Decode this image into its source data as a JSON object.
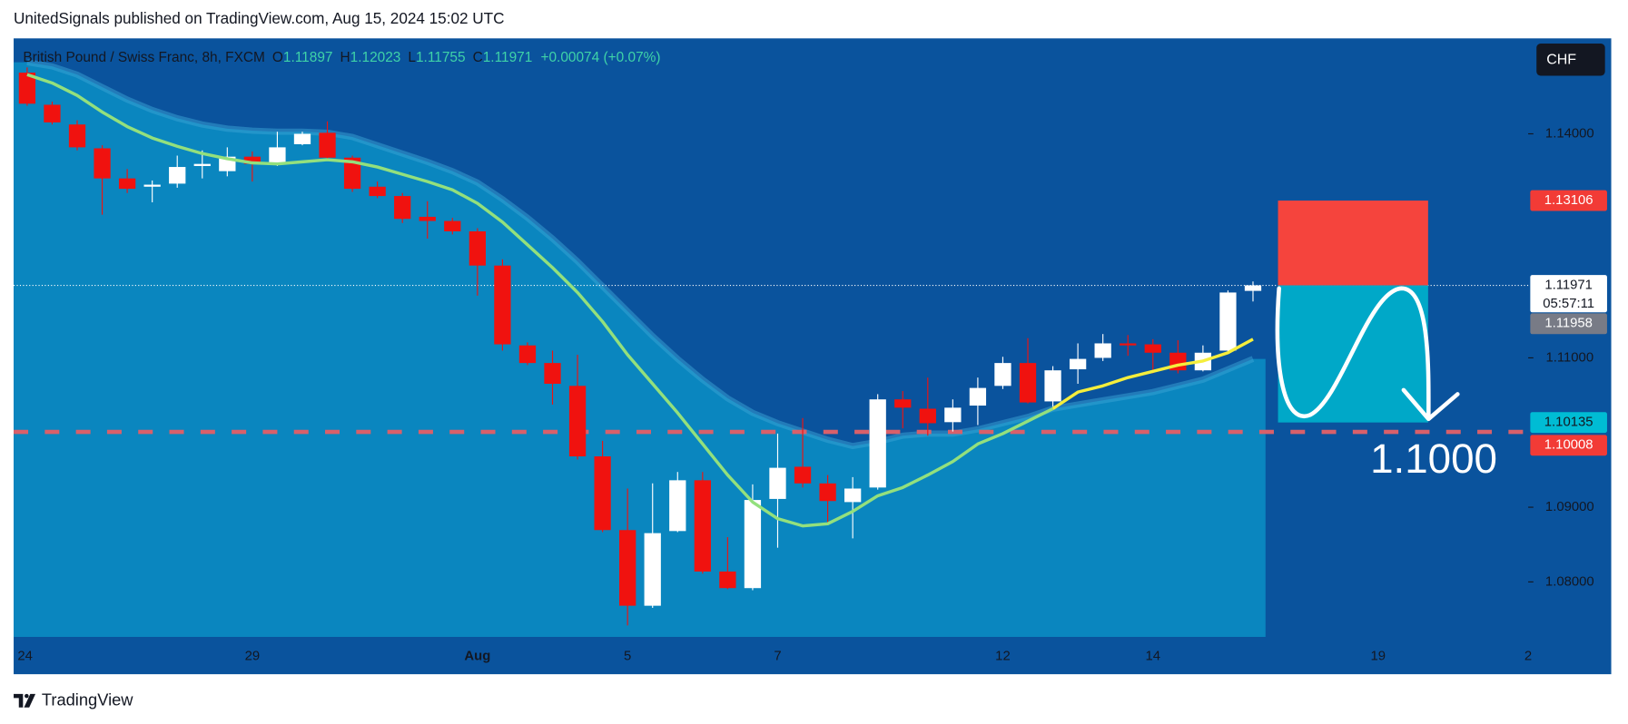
{
  "header": "UnitedSignals published on TradingView.com, Aug 15, 2024 15:02 UTC",
  "footer": "TradingView",
  "currency_button": "CHF",
  "chart_data": {
    "type": "candlestick",
    "symbol": "British Pound / Swiss Franc, 8h, FXCM",
    "legend_letters": [
      "O",
      "H",
      "L",
      "C"
    ],
    "change_label": "+0.00074 (+0.07%)",
    "categories": [
      "24",
      null,
      null,
      null,
      null,
      null,
      null,
      null,
      null,
      "29",
      null,
      null,
      null,
      null,
      null,
      null,
      null,
      null,
      "Aug",
      null,
      null,
      null,
      null,
      null,
      "5",
      null,
      null,
      null,
      null,
      null,
      "7",
      null,
      null,
      null,
      null,
      null,
      null,
      null,
      null,
      "12",
      null,
      null,
      null,
      null,
      null,
      "14",
      null,
      null,
      null,
      null,
      null,
      null,
      null,
      null,
      "19",
      null,
      null,
      null,
      null,
      null,
      "2"
    ],
    "open": [
      1.14819,
      1.14389,
      1.14125,
      1.13806,
      1.13403,
      1.13292,
      1.13333,
      1.13569,
      1.135,
      1.13694,
      1.13611,
      1.13861,
      1.14014,
      1.13681,
      1.13292,
      1.13167,
      1.12889,
      1.12833,
      1.12694,
      1.12236,
      1.11167,
      1.10931,
      1.10625,
      1.09681,
      1.08694,
      1.07681,
      1.08681,
      1.09361,
      1.08139,
      1.07917,
      1.09111,
      1.09542,
      1.09319,
      1.09069,
      1.09264,
      1.10444,
      1.10319,
      1.10139,
      1.10361,
      1.10625,
      1.10931,
      1.10417,
      1.10847,
      1.11,
      1.11194,
      1.11181,
      1.11069,
      1.10833,
      1.11097,
      1.11897,
      null,
      null,
      null,
      null,
      null,
      null,
      null,
      null,
      null,
      null,
      null
    ],
    "high": [
      1.14889,
      1.14431,
      1.14181,
      1.13847,
      1.13528,
      1.13375,
      1.13708,
      1.13778,
      1.13819,
      1.13764,
      1.14028,
      1.14028,
      1.14167,
      1.13708,
      1.13361,
      1.13208,
      1.13097,
      1.12875,
      1.12736,
      1.12319,
      1.11208,
      1.11097,
      1.11042,
      1.09889,
      1.0925,
      1.09319,
      1.09472,
      1.09472,
      1.086,
      1.09306,
      1.09986,
      1.10194,
      1.09431,
      1.09403,
      1.10514,
      1.10556,
      1.10736,
      1.10444,
      1.10736,
      1.11014,
      1.11264,
      1.10889,
      1.11194,
      1.11319,
      1.11306,
      1.1125,
      1.11236,
      1.11167,
      1.11903,
      1.12023,
      null,
      null,
      null,
      null,
      null,
      null,
      null,
      null,
      null,
      null,
      null
    ],
    "low": [
      1.14375,
      1.14125,
      1.13778,
      1.12917,
      1.13208,
      1.13083,
      1.13278,
      1.13403,
      1.13431,
      1.13361,
      1.1357,
      1.13847,
      1.13639,
      1.13222,
      1.13139,
      1.12806,
      1.12597,
      1.12653,
      1.11833,
      1.11097,
      1.10903,
      1.10375,
      1.09639,
      1.08667,
      1.07417,
      1.07653,
      1.08667,
      1.08111,
      1.07903,
      1.07889,
      1.08458,
      1.09264,
      1.08778,
      1.08583,
      1.09236,
      1.10056,
      1.09958,
      1.10014,
      1.101,
      1.10583,
      1.10389,
      1.10347,
      1.10653,
      1.10958,
      1.11028,
      1.10792,
      1.10792,
      1.10819,
      1.11069,
      1.11755,
      null,
      null,
      null,
      null,
      null,
      null,
      null,
      null,
      null,
      null,
      null
    ],
    "close": [
      1.14403,
      1.14153,
      1.13819,
      1.13403,
      1.13264,
      1.13319,
      1.13556,
      1.13597,
      1.13694,
      1.13597,
      1.13819,
      1.14,
      1.13681,
      1.13264,
      1.13167,
      1.12861,
      1.12833,
      1.12694,
      1.12236,
      1.11181,
      1.10931,
      1.10653,
      1.09681,
      1.08694,
      1.07681,
      1.08653,
      1.09361,
      1.08139,
      1.07917,
      1.09097,
      1.09528,
      1.09319,
      1.09083,
      1.0925,
      1.10444,
      1.10333,
      1.10125,
      1.10333,
      1.10597,
      1.10931,
      1.10403,
      1.10833,
      1.10986,
      1.11194,
      1.11167,
      1.11069,
      1.10833,
      1.11069,
      1.11875,
      1.11971,
      null,
      null,
      null,
      null,
      null,
      null,
      null,
      null,
      null,
      null,
      null
    ],
    "up_color": "#ffffff",
    "down_color": "#f0120f",
    "series": [
      {
        "color": "#93e07d",
        "values": [
          1.14792,
          1.14681,
          1.14514,
          1.14292,
          1.14097,
          1.13944,
          1.13833,
          1.13736,
          1.13667,
          1.13611,
          1.13597,
          1.13625,
          1.13653,
          1.13625,
          1.13556,
          1.13458,
          1.13361,
          1.1325,
          1.13069,
          1.12819,
          1.12514,
          1.12208,
          1.11875,
          1.11486,
          1.11042,
          1.10653,
          1.10264,
          1.09847,
          1.09431,
          1.09069,
          1.08847,
          1.0875,
          1.08778,
          1.08944,
          1.09153,
          1.09264,
          1.09431,
          1.09611,
          1.09847,
          1.09986,
          1.10153,
          1.10319,
          null,
          null,
          null,
          null,
          null,
          null,
          null,
          null,
          null,
          null,
          null,
          null,
          null,
          null,
          null,
          null,
          null,
          null,
          null
        ]
      },
      {
        "color": "#f5ee3c",
        "values": [
          null,
          null,
          null,
          null,
          null,
          null,
          null,
          null,
          null,
          null,
          null,
          null,
          null,
          null,
          null,
          null,
          null,
          null,
          null,
          null,
          null,
          null,
          null,
          null,
          null,
          null,
          null,
          null,
          null,
          null,
          null,
          null,
          null,
          null,
          null,
          null,
          null,
          null,
          null,
          null,
          null,
          1.10319,
          1.10542,
          1.10625,
          1.10736,
          1.10819,
          1.10903,
          1.10958,
          1.11069,
          1.1125,
          null,
          null,
          null,
          null,
          null,
          null,
          null,
          null,
          null,
          null,
          null
        ]
      }
    ],
    "band": {
      "color": "#0a86bf",
      "values": [
        1.14958,
        1.14903,
        1.14792,
        1.14625,
        1.14458,
        1.14319,
        1.14208,
        1.14125,
        1.14069,
        1.14042,
        1.14028,
        1.14028,
        1.14014,
        1.13958,
        1.13847,
        1.13736,
        1.13625,
        1.135,
        1.13347,
        1.13125,
        1.12875,
        1.12597,
        1.12292,
        1.11958,
        1.11625,
        1.11292,
        1.10986,
        1.10708,
        1.10458,
        1.10264,
        1.10125,
        1.10014,
        1.09903,
        1.09819,
        1.09875,
        1.09958,
        1.09986,
        1.09986,
        1.10042,
        1.10125,
        1.10208,
        1.10319,
        1.10375,
        1.10431,
        1.10486,
        1.10542,
        1.10625,
        1.10708,
        1.10847,
        1.10986,
        null,
        null,
        null,
        null,
        null,
        null,
        null,
        null,
        null,
        null,
        null
      ]
    },
    "ylim": [
      1.07264,
      1.15278
    ],
    "yticks": [
      {
        "value": 1.08,
        "label": "1.08000"
      },
      {
        "value": 1.09,
        "label": "1.09000"
      },
      {
        "value": 1.11,
        "label": "1.11000"
      },
      {
        "value": 1.14,
        "label": "1.14000"
      }
    ],
    "position": {
      "stop": 1.13106,
      "entry": 1.11971,
      "target": 1.10135
    },
    "countdown": "05:57:11",
    "second_price": 1.11958,
    "hline": 1.10008,
    "annotation": "1.1000"
  }
}
